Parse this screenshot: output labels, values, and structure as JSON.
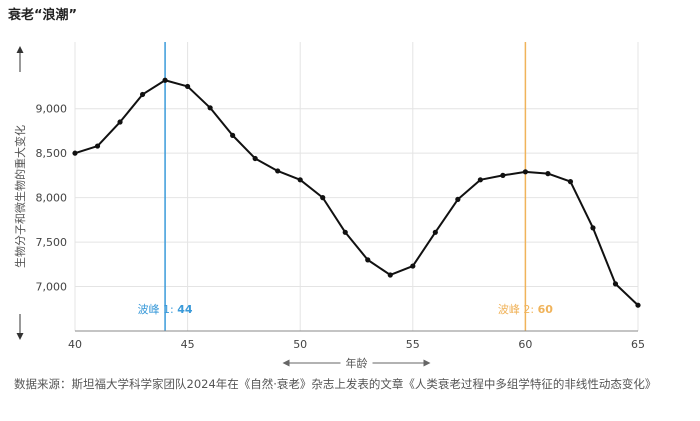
{
  "title": "衰老“浪潮”",
  "source": "数据来源：斯坦福大学科学家团队2024年在《自然·衰老》杂志上发表的文章《人类衰老过程中多组学特征的非线性动态变化》",
  "colors": {
    "line": "#111111",
    "peak1": "#3a9ad9",
    "peak2": "#f0b35a",
    "grid": "#e4e4e4"
  },
  "chart_data": {
    "type": "line",
    "title": "衰老“浪潮”",
    "xlabel": "年龄",
    "ylabel": "生物分子和微生物的重大变化",
    "xlim": [
      40,
      65
    ],
    "ylim": [
      6500,
      9750
    ],
    "x_ticks": [
      40,
      45,
      50,
      55,
      60,
      65
    ],
    "y_ticks": [
      7000,
      7500,
      8000,
      8500,
      9000
    ],
    "y_tick_labels": [
      "7,000",
      "7,500",
      "8,000",
      "8,500",
      "9,000"
    ],
    "x": [
      40,
      41,
      42,
      43,
      44,
      45,
      46,
      47,
      48,
      49,
      50,
      51,
      52,
      53,
      54,
      55,
      56,
      57,
      58,
      59,
      60,
      61,
      62,
      63,
      64,
      65
    ],
    "values": [
      8500,
      8580,
      8850,
      9160,
      9320,
      9250,
      9010,
      8700,
      8440,
      8300,
      8200,
      8000,
      7610,
      7300,
      7130,
      7230,
      7610,
      7980,
      8200,
      8250,
      8290,
      8270,
      8180,
      7660,
      7030,
      6790
    ],
    "grid": true,
    "annotations": [
      {
        "label": "波峰 1: ",
        "value": "44",
        "x": 44
      },
      {
        "label": "波峰 2: ",
        "value": "60",
        "x": 60
      }
    ]
  }
}
